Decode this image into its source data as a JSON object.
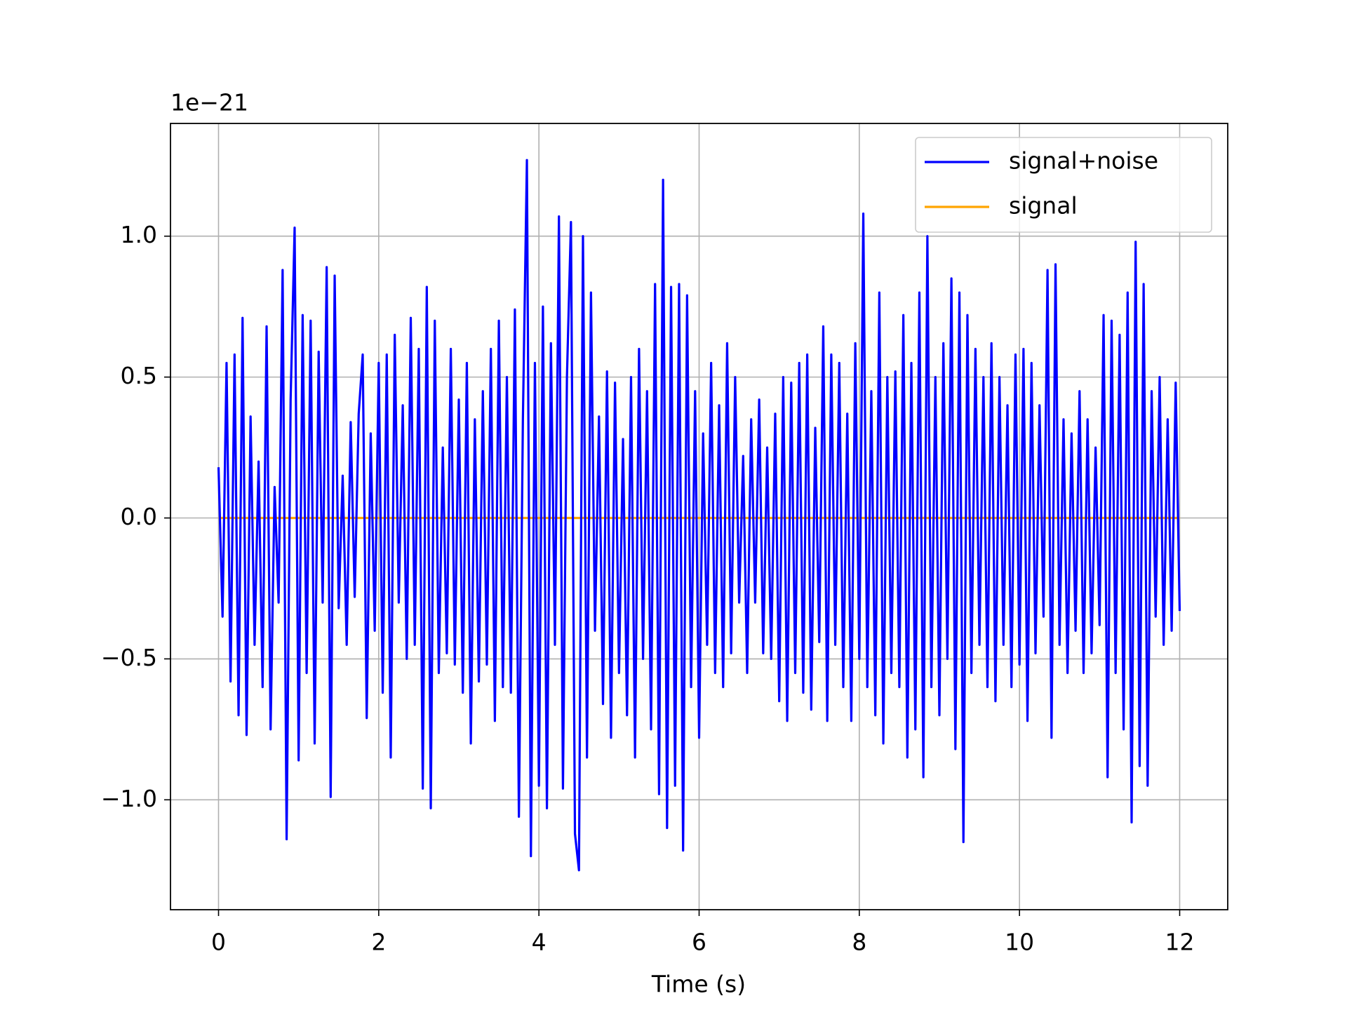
{
  "chart_data": {
    "type": "line",
    "y_offset_label": "1e−21",
    "xlabel": "Time (s)",
    "xlim": [
      -0.6,
      12.6
    ],
    "ylim": [
      -1.39,
      1.4
    ],
    "xticks": [
      0,
      2,
      4,
      6,
      8,
      10,
      12
    ],
    "yticks": [
      {
        "value": -1.0,
        "label": "−1.0"
      },
      {
        "value": -0.5,
        "label": "−0.5"
      },
      {
        "value": 0.0,
        "label": "0.0"
      },
      {
        "value": 0.5,
        "label": "0.5"
      },
      {
        "value": 1.0,
        "label": "1.0"
      }
    ],
    "grid": true,
    "legend": "upper right",
    "series": [
      {
        "name": "signal+noise",
        "color": "#0000ff",
        "x": [
          0,
          0.05,
          0.1,
          0.15,
          0.2,
          0.25,
          0.3,
          0.35,
          0.4,
          0.45,
          0.5,
          0.55,
          0.6,
          0.65,
          0.7,
          0.75,
          0.8,
          0.85,
          0.9,
          0.95,
          1,
          1.05,
          1.1,
          1.15,
          1.2,
          1.25,
          1.3,
          1.35,
          1.4,
          1.45,
          1.5,
          1.55,
          1.6,
          1.65,
          1.7,
          1.75,
          1.8,
          1.85,
          1.9,
          1.95,
          2,
          2.05,
          2.1,
          2.15,
          2.2,
          2.25,
          2.3,
          2.35,
          2.4,
          2.45,
          2.5,
          2.55,
          2.6,
          2.65,
          2.7,
          2.75,
          2.8,
          2.85,
          2.9,
          2.95,
          3,
          3.05,
          3.1,
          3.15,
          3.2,
          3.25,
          3.3,
          3.35,
          3.4,
          3.45,
          3.5,
          3.55,
          3.6,
          3.65,
          3.7,
          3.75,
          3.8,
          3.85,
          3.9,
          3.95,
          4,
          4.05,
          4.1,
          4.15,
          4.2,
          4.25,
          4.3,
          4.35,
          4.4,
          4.45,
          4.5,
          4.55,
          4.6,
          4.65,
          4.7,
          4.75,
          4.8,
          4.85,
          4.9,
          4.95,
          5,
          5.05,
          5.1,
          5.15,
          5.2,
          5.25,
          5.3,
          5.35,
          5.4,
          5.45,
          5.5,
          5.55,
          5.6,
          5.65,
          5.7,
          5.75,
          5.8,
          5.85,
          5.9,
          5.95,
          6,
          6.05,
          6.1,
          6.15,
          6.2,
          6.25,
          6.3,
          6.35,
          6.4,
          6.45,
          6.5,
          6.55,
          6.6,
          6.65,
          6.7,
          6.75,
          6.8,
          6.85,
          6.9,
          6.95,
          7,
          7.05,
          7.1,
          7.15,
          7.2,
          7.25,
          7.3,
          7.35,
          7.4,
          7.45,
          7.5,
          7.55,
          7.6,
          7.65,
          7.7,
          7.75,
          7.8,
          7.85,
          7.9,
          7.95,
          8,
          8.05,
          8.1,
          8.15,
          8.2,
          8.25,
          8.3,
          8.35,
          8.4,
          8.45,
          8.5,
          8.55,
          8.6,
          8.65,
          8.7,
          8.75,
          8.8,
          8.85,
          8.9,
          8.95,
          9,
          9.05,
          9.1,
          9.15,
          9.2,
          9.25,
          9.3,
          9.35,
          9.4,
          9.45,
          9.5,
          9.55,
          9.6,
          9.65,
          9.7,
          9.75,
          9.8,
          9.85,
          9.9,
          9.95,
          10,
          10.05,
          10.1,
          10.15,
          10.2,
          10.25,
          10.3,
          10.35,
          10.4,
          10.45,
          10.5,
          10.55,
          10.6,
          10.65,
          10.7,
          10.75,
          10.8,
          10.85,
          10.9,
          10.95,
          11,
          11.05,
          11.1,
          11.15,
          11.2,
          11.25,
          11.3,
          11.35,
          11.4,
          11.45,
          11.5,
          11.55,
          11.6,
          11.65,
          11.7,
          11.75,
          11.8,
          11.85,
          11.9,
          11.95,
          12
        ],
        "values": [
          0.18,
          -0.35,
          0.55,
          -0.58,
          0.58,
          -0.7,
          0.71,
          -0.77,
          0.36,
          -0.45,
          0.2,
          -0.6,
          0.68,
          -0.75,
          0.11,
          -0.3,
          0.88,
          -1.14,
          0.42,
          1.03,
          -0.86,
          0.72,
          -0.55,
          0.7,
          -0.8,
          0.59,
          -0.3,
          0.89,
          -0.99,
          0.86,
          -0.32,
          0.15,
          -0.45,
          0.34,
          -0.28,
          0.37,
          0.58,
          -0.71,
          0.3,
          -0.4,
          0.55,
          -0.62,
          0.58,
          -0.85,
          0.65,
          -0.3,
          0.4,
          -0.5,
          0.71,
          -0.45,
          0.6,
          -0.96,
          0.82,
          -1.03,
          0.7,
          -0.55,
          0.25,
          -0.48,
          0.6,
          -0.52,
          0.42,
          -0.62,
          0.55,
          -0.8,
          0.35,
          -0.58,
          0.45,
          -0.52,
          0.6,
          -0.72,
          0.7,
          -0.6,
          0.5,
          -0.62,
          0.74,
          -1.06,
          0.35,
          1.27,
          -1.2,
          0.55,
          -0.95,
          0.75,
          -1.03,
          0.62,
          -0.45,
          1.07,
          -0.96,
          0.5,
          1.05,
          -1.12,
          -1.25,
          1.0,
          -0.85,
          0.8,
          -0.4,
          0.36,
          -0.66,
          0.52,
          -0.78,
          0.48,
          -0.55,
          0.28,
          -0.7,
          0.5,
          -0.85,
          0.6,
          -0.5,
          0.45,
          -0.75,
          0.83,
          -0.98,
          1.2,
          -1.1,
          0.82,
          -0.95,
          0.83,
          -1.18,
          0.79,
          -0.6,
          0.45,
          -0.78,
          0.3,
          -0.45,
          0.55,
          -0.55,
          0.4,
          -0.6,
          0.62,
          -0.48,
          0.5,
          -0.3,
          0.22,
          -0.55,
          0.35,
          -0.3,
          0.42,
          -0.48,
          0.25,
          -0.5,
          0.37,
          -0.65,
          0.5,
          -0.72,
          0.48,
          -0.55,
          0.55,
          -0.62,
          0.58,
          -0.68,
          0.32,
          -0.44,
          0.68,
          -0.72,
          0.58,
          -0.45,
          0.55,
          -0.6,
          0.37,
          -0.72,
          0.62,
          -0.5,
          1.08,
          -0.6,
          0.45,
          -0.7,
          0.8,
          -0.8,
          0.5,
          -0.55,
          0.52,
          -0.6,
          0.72,
          -0.85,
          0.55,
          -0.75,
          0.8,
          -0.92,
          1.0,
          -0.6,
          0.5,
          -0.7,
          0.62,
          -0.5,
          0.85,
          -0.82,
          0.8,
          -1.15,
          0.72,
          -0.55,
          0.6,
          -0.45,
          0.5,
          -0.6,
          0.62,
          -0.65,
          0.5,
          -0.45,
          0.4,
          -0.6,
          0.58,
          -0.52,
          0.6,
          -0.72,
          0.55,
          -0.48,
          0.4,
          -0.35,
          0.88,
          -0.78,
          0.9,
          -0.45,
          0.35,
          -0.55,
          0.3,
          -0.4,
          0.45,
          -0.55,
          0.35,
          -0.48,
          0.25,
          -0.38,
          0.72,
          -0.92,
          0.7,
          -0.55,
          0.65,
          -0.75,
          0.8,
          -1.08,
          0.98,
          -0.88,
          0.83,
          -0.95,
          0.45,
          -0.35,
          0.5,
          -0.45,
          0.35,
          -0.4,
          0.48,
          -0.33
        ]
      },
      {
        "name": "signal",
        "color": "#ffa500",
        "x": [
          0,
          12
        ],
        "values": [
          0,
          0
        ]
      }
    ]
  }
}
